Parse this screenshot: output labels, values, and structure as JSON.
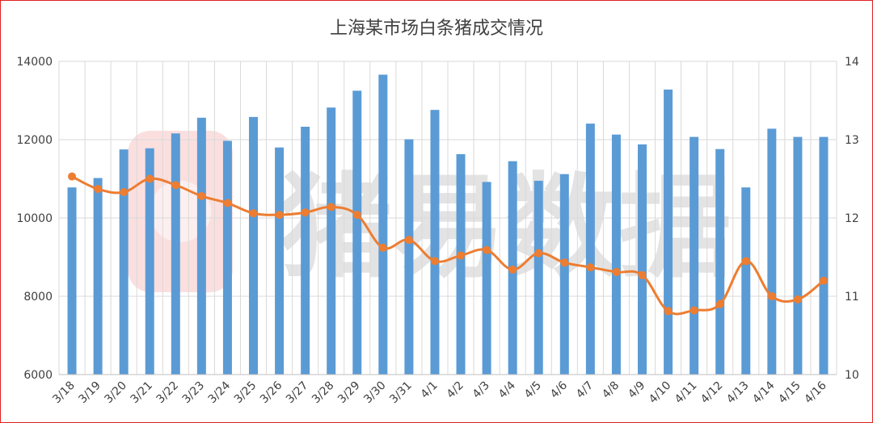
{
  "chart_data": {
    "type": "bar",
    "title": "上海某市场白条猪成交情况",
    "categories": [
      "3/18",
      "3/19",
      "3/20",
      "3/21",
      "3/22",
      "3/23",
      "3/24",
      "3/25",
      "3/26",
      "3/27",
      "3/28",
      "3/29",
      "3/30",
      "3/31",
      "4/1",
      "4/2",
      "4/3",
      "4/4",
      "4/5",
      "4/6",
      "4/7",
      "4/8",
      "4/9",
      "4/10",
      "4/11",
      "4/12",
      "4/13",
      "4/14",
      "4/15",
      "4/16"
    ],
    "series": [
      {
        "type": "bar",
        "axis": "left",
        "color": "#5b9bd5",
        "values": [
          10780,
          11020,
          11750,
          11780,
          12160,
          12560,
          11970,
          12580,
          11800,
          12330,
          12820,
          13250,
          13660,
          12010,
          12760,
          11630,
          10920,
          11450,
          10950,
          11120,
          12410,
          12130,
          11880,
          13280,
          12070,
          11760,
          10780,
          12280,
          12070,
          12070
        ]
      },
      {
        "type": "line",
        "axis": "right",
        "color": "#ed7d31",
        "values": [
          12.53,
          12.37,
          12.33,
          12.5,
          12.42,
          12.28,
          12.19,
          12.06,
          12.04,
          12.07,
          12.14,
          12.04,
          11.62,
          11.72,
          11.45,
          11.52,
          11.59,
          11.34,
          11.55,
          11.43,
          11.37,
          11.31,
          11.27,
          10.81,
          10.82,
          10.9,
          11.45,
          11.0,
          10.96,
          11.2
        ]
      }
    ],
    "y_left": {
      "min": 6000,
      "max": 14000,
      "ticks": [
        "6000",
        "8000",
        "10000",
        "12000",
        "14000"
      ]
    },
    "y_right": {
      "min": 10,
      "max": 14,
      "ticks": [
        "10",
        "11",
        "12",
        "13",
        "14"
      ]
    },
    "grid": "horizontal",
    "watermark": "猪易数据"
  }
}
